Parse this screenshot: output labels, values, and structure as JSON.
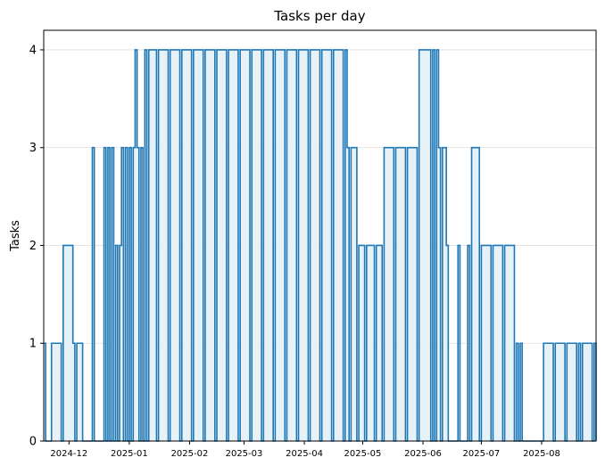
{
  "chart_data": {
    "type": "area",
    "title": "Tasks per day",
    "xlabel": "",
    "ylabel": "Tasks",
    "ylim": [
      0,
      4.2
    ],
    "xlim": [
      "2024-11-18",
      "2025-08-29"
    ],
    "grid": {
      "y": true,
      "x": false
    },
    "legend": "none",
    "step": "post",
    "line_color": "#1f77b4",
    "fill_color": "#e7f1f8",
    "yticks": [
      0,
      1,
      2,
      3,
      4
    ],
    "xticks": [
      "2024-12",
      "2025-01",
      "2025-02",
      "2025-03",
      "2025-04",
      "2025-05",
      "2025-06",
      "2025-07",
      "2025-08"
    ],
    "series": [
      {
        "x": [
          "2024-11-18",
          "2024-11-19",
          "2024-11-22",
          "2024-11-27",
          "2024-11-28",
          "2024-12-03",
          "2024-12-04",
          "2024-12-05",
          "2024-12-08",
          "2024-12-13",
          "2024-12-14",
          "2024-12-19",
          "2024-12-20",
          "2024-12-21",
          "2024-12-22",
          "2024-12-23",
          "2024-12-24",
          "2024-12-25",
          "2024-12-26",
          "2024-12-27",
          "2024-12-28",
          "2024-12-29",
          "2024-12-30",
          "2024-12-31",
          "2025-01-01",
          "2025-01-02",
          "2025-01-03",
          "2025-01-04",
          "2025-01-05",
          "2025-01-06",
          "2025-01-07",
          "2025-01-08",
          "2025-01-09",
          "2025-01-10",
          "2025-01-11",
          "2025-01-15",
          "2025-01-16",
          "2025-01-21",
          "2025-01-22",
          "2025-01-27",
          "2025-01-28",
          "2025-02-02",
          "2025-02-03",
          "2025-02-08",
          "2025-02-09",
          "2025-02-14",
          "2025-02-15",
          "2025-02-20",
          "2025-02-21",
          "2025-02-26",
          "2025-02-27",
          "2025-03-04",
          "2025-03-05",
          "2025-03-10",
          "2025-03-11",
          "2025-03-16",
          "2025-03-17",
          "2025-03-22",
          "2025-03-23",
          "2025-03-28",
          "2025-03-29",
          "2025-04-03",
          "2025-04-04",
          "2025-04-09",
          "2025-04-10",
          "2025-04-15",
          "2025-04-16",
          "2025-04-21",
          "2025-04-22",
          "2025-04-23",
          "2025-04-24",
          "2025-04-25",
          "2025-04-28",
          "2025-04-29",
          "2025-05-02",
          "2025-05-03",
          "2025-05-07",
          "2025-05-08",
          "2025-05-11",
          "2025-05-12",
          "2025-05-17",
          "2025-05-18",
          "2025-05-23",
          "2025-05-24",
          "2025-05-29",
          "2025-05-30",
          "2025-06-05",
          "2025-06-06",
          "2025-06-07",
          "2025-06-08",
          "2025-06-09",
          "2025-06-10",
          "2025-06-11",
          "2025-06-13",
          "2025-06-14",
          "2025-06-19",
          "2025-06-20",
          "2025-06-24",
          "2025-06-25",
          "2025-06-26",
          "2025-06-30",
          "2025-07-01",
          "2025-07-06",
          "2025-07-07",
          "2025-07-12",
          "2025-07-13",
          "2025-07-18",
          "2025-07-19",
          "2025-07-20",
          "2025-07-21",
          "2025-07-22",
          "2025-08-01",
          "2025-08-02",
          "2025-08-07",
          "2025-08-08",
          "2025-08-13",
          "2025-08-14",
          "2025-08-19",
          "2025-08-20",
          "2025-08-21",
          "2025-08-22",
          "2025-08-27",
          "2025-08-28",
          "2025-08-29"
        ],
        "values": [
          1,
          0,
          1,
          0,
          2,
          1,
          0,
          1,
          0,
          3,
          0,
          3,
          0,
          3,
          0,
          3,
          0,
          2,
          0,
          2,
          3,
          0,
          3,
          0,
          3,
          0,
          3,
          4,
          3,
          0,
          3,
          0,
          4,
          0,
          4,
          0,
          4,
          0,
          4,
          0,
          4,
          0,
          4,
          0,
          4,
          0,
          4,
          0,
          4,
          0,
          4,
          0,
          4,
          0,
          4,
          0,
          4,
          0,
          4,
          0,
          4,
          0,
          4,
          0,
          4,
          0,
          4,
          0,
          4,
          3,
          0,
          3,
          0,
          2,
          0,
          2,
          0,
          2,
          0,
          3,
          0,
          3,
          0,
          3,
          0,
          4,
          0,
          4,
          0,
          4,
          3,
          0,
          3,
          2,
          0,
          2,
          0,
          2,
          0,
          3,
          0,
          2,
          0,
          2,
          0,
          2,
          0,
          1,
          0,
          1,
          0,
          0,
          1,
          0,
          1,
          0,
          1,
          0,
          1,
          0,
          1,
          0,
          1,
          0
        ]
      }
    ]
  }
}
